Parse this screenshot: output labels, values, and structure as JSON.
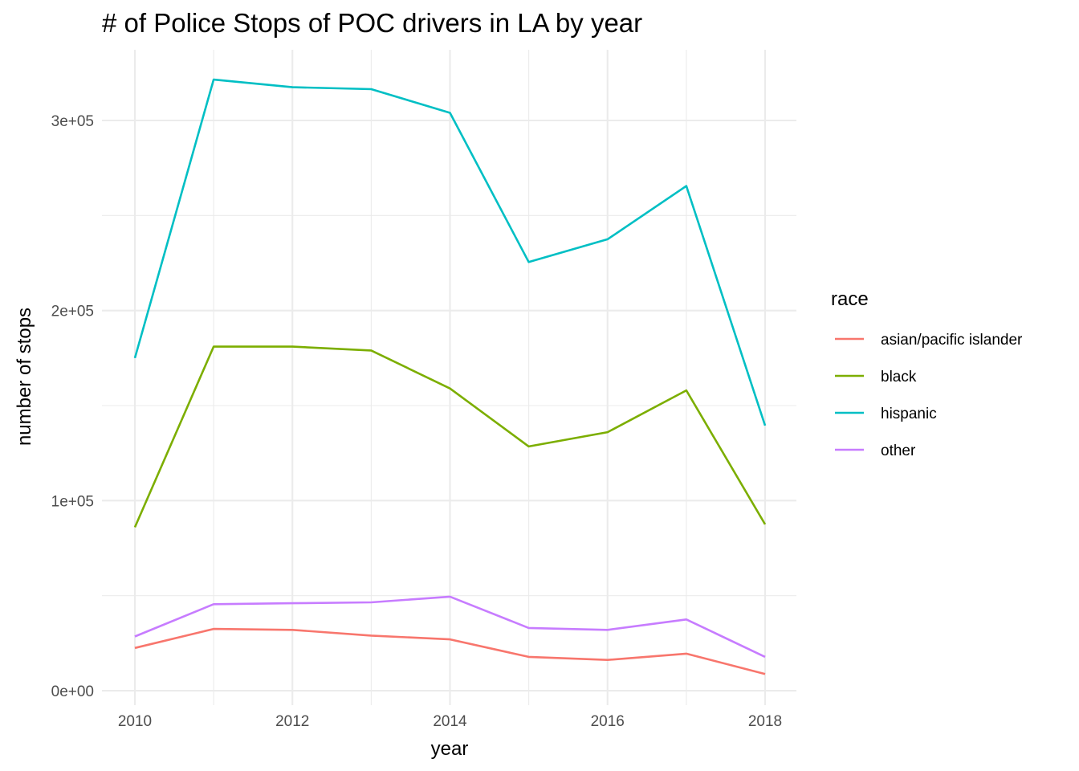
{
  "chart_data": {
    "type": "line",
    "title": "# of Police Stops of POC drivers in LA by year",
    "xlabel": "year",
    "ylabel": "number of stops",
    "x": [
      2010,
      2011,
      2012,
      2013,
      2014,
      2015,
      2016,
      2017,
      2018
    ],
    "x_ticks": [
      2010,
      2012,
      2014,
      2016,
      2018
    ],
    "x_tick_labels": [
      "2010",
      "2012",
      "2014",
      "2016",
      "2018"
    ],
    "y_ticks": [
      0,
      100000,
      200000,
      300000
    ],
    "y_tick_labels": [
      "0e+00",
      "1e+05",
      "2e+05",
      "3e+05"
    ],
    "xlim": [
      2009.6,
      2018.4
    ],
    "ylim": [
      0,
      335000
    ],
    "grid": true,
    "legend": {
      "title": "race",
      "position": "right"
    },
    "series": [
      {
        "name": "asian/pacific islander",
        "color": "#F8766D",
        "values": [
          22500,
          32500,
          32000,
          29000,
          27000,
          17800,
          16200,
          19500,
          8800
        ]
      },
      {
        "name": "black",
        "color": "#7CAE00",
        "values": [
          86000,
          181000,
          181000,
          179000,
          159000,
          128500,
          136000,
          158000,
          87500
        ]
      },
      {
        "name": "hispanic",
        "color": "#00BFC4",
        "values": [
          175000,
          321500,
          317500,
          316500,
          304000,
          225500,
          237500,
          265500,
          139500
        ]
      },
      {
        "name": "other",
        "color": "#C77CFF",
        "values": [
          28500,
          45500,
          46000,
          46500,
          49500,
          33000,
          32000,
          37500,
          17800
        ]
      }
    ]
  }
}
